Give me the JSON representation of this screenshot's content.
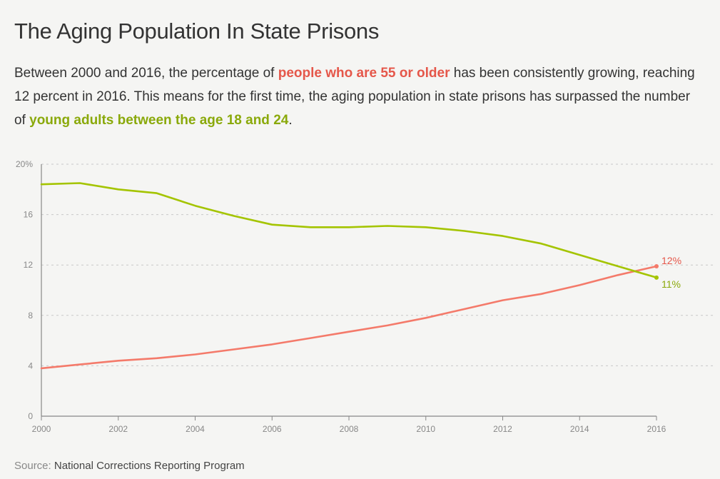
{
  "header": {
    "title": "The Aging Population In State Prisons",
    "desc_part1": "Between 2000 and 2016, the percentage of ",
    "desc_highlight1": "people who are 55 or older",
    "desc_part2": " has been consistently growing, reaching 12 percent in 2016. This means for the first time, the aging population in state prisons has surpassed the number of ",
    "desc_highlight2": "young adults between the age 18 and 24",
    "desc_part3": "."
  },
  "source": {
    "prefix": "Source:",
    "text": " National Corrections Reporting Program"
  },
  "colors": {
    "older": "#f47a6a",
    "older_label": "#e5574a",
    "young": "#a4c400",
    "young_label": "#8aa90a",
    "axis": "#888888",
    "grid": "#c8c8c8"
  },
  "chart_data": {
    "type": "line",
    "title": "The Aging Population In State Prisons",
    "xlabel": "",
    "ylabel": "",
    "x": [
      2000,
      2001,
      2002,
      2003,
      2004,
      2005,
      2006,
      2007,
      2008,
      2009,
      2010,
      2011,
      2012,
      2013,
      2014,
      2015,
      2016
    ],
    "xlim": [
      2000,
      2016
    ],
    "ylim": [
      0,
      20
    ],
    "xticks": [
      2000,
      2002,
      2004,
      2006,
      2008,
      2010,
      2012,
      2014,
      2016
    ],
    "xtick_labels": [
      "2000",
      "2002",
      "2004",
      "2006",
      "2008",
      "2010",
      "2012",
      "2014",
      "2016"
    ],
    "yticks": [
      0,
      4,
      8,
      12,
      16,
      20
    ],
    "ytick_labels": [
      "0",
      "4",
      "8",
      "12",
      "16",
      "20%"
    ],
    "grid": "horizontal-dashed",
    "series": [
      {
        "name": "people who are 55 or older",
        "key": "older",
        "values": [
          3.8,
          4.1,
          4.4,
          4.6,
          4.9,
          5.3,
          5.7,
          6.2,
          6.7,
          7.2,
          7.8,
          8.5,
          9.2,
          9.7,
          10.4,
          11.2,
          11.9
        ],
        "end_label": "12%"
      },
      {
        "name": "young adults between the age 18 and 24",
        "key": "young",
        "values": [
          18.4,
          18.5,
          18.0,
          17.7,
          16.7,
          15.9,
          15.2,
          15.0,
          15.0,
          15.1,
          15.0,
          14.7,
          14.3,
          13.7,
          12.8,
          11.9,
          11.0
        ],
        "end_label": "11%"
      }
    ]
  }
}
